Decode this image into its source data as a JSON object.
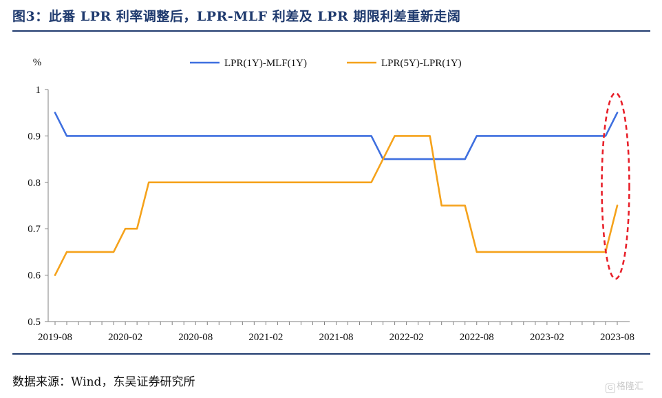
{
  "title": "图3：此番 LPR 利率调整后，LPR-MLF 利差及 LPR 期限利差重新走阔",
  "source": "数据来源：Wind，东吴证券研究所",
  "watermark": "格隆汇",
  "chart_data": {
    "type": "line",
    "ylabel": "%",
    "xlabel": "",
    "ylim": [
      0.5,
      1.0
    ],
    "yticks": [
      0.5,
      0.6,
      0.7,
      0.8,
      0.9,
      1.0
    ],
    "ytick_labels": [
      "0.5",
      "0.6",
      "0.7",
      "0.8",
      "0.9",
      "1"
    ],
    "xtick_labels": [
      "2019-08",
      "2020-02",
      "2020-08",
      "2021-02",
      "2021-08",
      "2022-02",
      "2022-08",
      "2023-02",
      "2023-08"
    ],
    "x": [
      "2019-08",
      "2019-09",
      "2019-10",
      "2019-11",
      "2019-12",
      "2020-01",
      "2020-02",
      "2020-03",
      "2020-04",
      "2020-05",
      "2020-06",
      "2020-07",
      "2020-08",
      "2020-09",
      "2020-10",
      "2020-11",
      "2020-12",
      "2021-01",
      "2021-02",
      "2021-03",
      "2021-04",
      "2021-05",
      "2021-06",
      "2021-07",
      "2021-08",
      "2021-09",
      "2021-10",
      "2021-11",
      "2021-12",
      "2022-01",
      "2022-02",
      "2022-03",
      "2022-04",
      "2022-05",
      "2022-06",
      "2022-07",
      "2022-08",
      "2022-09",
      "2022-10",
      "2022-11",
      "2022-12",
      "2023-01",
      "2023-02",
      "2023-03",
      "2023-04",
      "2023-05",
      "2023-06",
      "2023-07",
      "2023-08"
    ],
    "legend_position": "top",
    "grid": false,
    "series": [
      {
        "name": "LPR(1Y)-MLF(1Y)",
        "color": "#3e6fdf",
        "values": [
          0.95,
          0.9,
          0.9,
          0.9,
          0.9,
          0.9,
          0.9,
          0.9,
          0.9,
          0.9,
          0.9,
          0.9,
          0.9,
          0.9,
          0.9,
          0.9,
          0.9,
          0.9,
          0.9,
          0.9,
          0.9,
          0.9,
          0.9,
          0.9,
          0.9,
          0.9,
          0.9,
          0.9,
          0.85,
          0.85,
          0.85,
          0.85,
          0.85,
          0.85,
          0.85,
          0.85,
          0.9,
          0.9,
          0.9,
          0.9,
          0.9,
          0.9,
          0.9,
          0.9,
          0.9,
          0.9,
          0.9,
          0.9,
          0.95
        ]
      },
      {
        "name": "LPR(5Y)-LPR(1Y)",
        "color": "#f5a21b",
        "values": [
          0.6,
          0.65,
          0.65,
          0.65,
          0.65,
          0.65,
          0.7,
          0.7,
          0.8,
          0.8,
          0.8,
          0.8,
          0.8,
          0.8,
          0.8,
          0.8,
          0.8,
          0.8,
          0.8,
          0.8,
          0.8,
          0.8,
          0.8,
          0.8,
          0.8,
          0.8,
          0.8,
          0.8,
          0.85,
          0.9,
          0.9,
          0.9,
          0.9,
          0.75,
          0.75,
          0.75,
          0.65,
          0.65,
          0.65,
          0.65,
          0.65,
          0.65,
          0.65,
          0.65,
          0.65,
          0.65,
          0.65,
          0.65,
          0.75
        ]
      }
    ],
    "annotations": [
      {
        "type": "dashed-ellipse",
        "color": "#e8202a",
        "x_from": "2023-07",
        "x_to": "2023-08"
      }
    ]
  }
}
